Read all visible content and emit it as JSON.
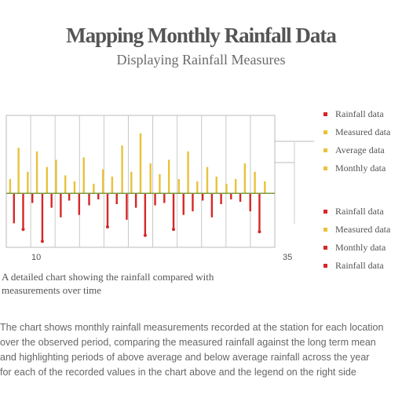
{
  "title": "Mapping Monthly Rainfall Data",
  "subtitle": "Displaying Rainfall Measures",
  "caption": [
    "A detailed chart showing the rainfall compared with",
    "measurements over time"
  ],
  "paragraph": [
    "The chart shows monthly rainfall measurements recorded at the station for each location",
    "over the observed period, comparing the measured rainfall against the long term mean",
    "and highlighting periods of above average and below average rainfall across the year",
    "for each of the recorded values in the chart above and the legend on the right side"
  ],
  "legend": {
    "top": [
      {
        "label": "Rainfall data",
        "color": "#d62728"
      },
      {
        "label": "Measured data",
        "color": "#e8c23a"
      },
      {
        "label": "Average data",
        "color": "#e8c23a"
      },
      {
        "label": "Monthly data",
        "color": "#e8c23a"
      }
    ],
    "bottom": [
      {
        "label": "Rainfall data",
        "color": "#d62728"
      },
      {
        "label": "Measured data",
        "color": "#e8c23a"
      },
      {
        "label": "Monthly data",
        "color": "#d62728"
      },
      {
        "label": "Rainfall data",
        "color": "#d62728"
      }
    ]
  },
  "chart_data": {
    "type": "bar",
    "xlabel_left": "10",
    "xlabel_right": "35",
    "baseline": 0,
    "ylim": [
      -45,
      65
    ],
    "grid": true,
    "colors": {
      "positive": "#e8c23a",
      "negative": "#d62728",
      "baseline": "#7a9a3a"
    },
    "x": [
      0.5,
      1,
      1.6,
      2.2,
      2.8,
      3.4,
      4,
      4.7,
      5.3,
      5.9,
      6.5,
      7.1,
      7.7,
      8.2,
      8.9,
      9.5,
      10.1,
      10.8,
      11.4,
      12,
      12.6,
      13.2,
      13.8,
      14.4,
      15.1,
      15.7,
      16.3,
      16.9,
      17.5,
      18.1,
      18.8,
      19.4,
      20,
      20.6,
      21.2,
      21.8,
      22.5,
      23.1,
      23.7,
      24.3,
      24.9,
      25.6,
      26.2,
      26.8,
      27.4,
      28,
      28.7,
      29.3,
      29.9,
      30.5,
      31.1,
      31.8,
      32.4,
      33,
      33.7
    ],
    "values": [
      12,
      -25,
      38,
      -30,
      18,
      -8,
      35,
      -40,
      22,
      -12,
      28,
      -20,
      15,
      -6,
      10,
      -18,
      30,
      -10,
      8,
      -5,
      20,
      -28,
      14,
      -9,
      40,
      -22,
      18,
      -12,
      50,
      -35,
      25,
      -10,
      16,
      -8,
      28,
      -30,
      12,
      -18,
      35,
      -15,
      10,
      -6,
      22,
      -20,
      14,
      -9,
      8,
      -5,
      12,
      -7,
      25,
      -15,
      18,
      -32,
      10
    ]
  }
}
